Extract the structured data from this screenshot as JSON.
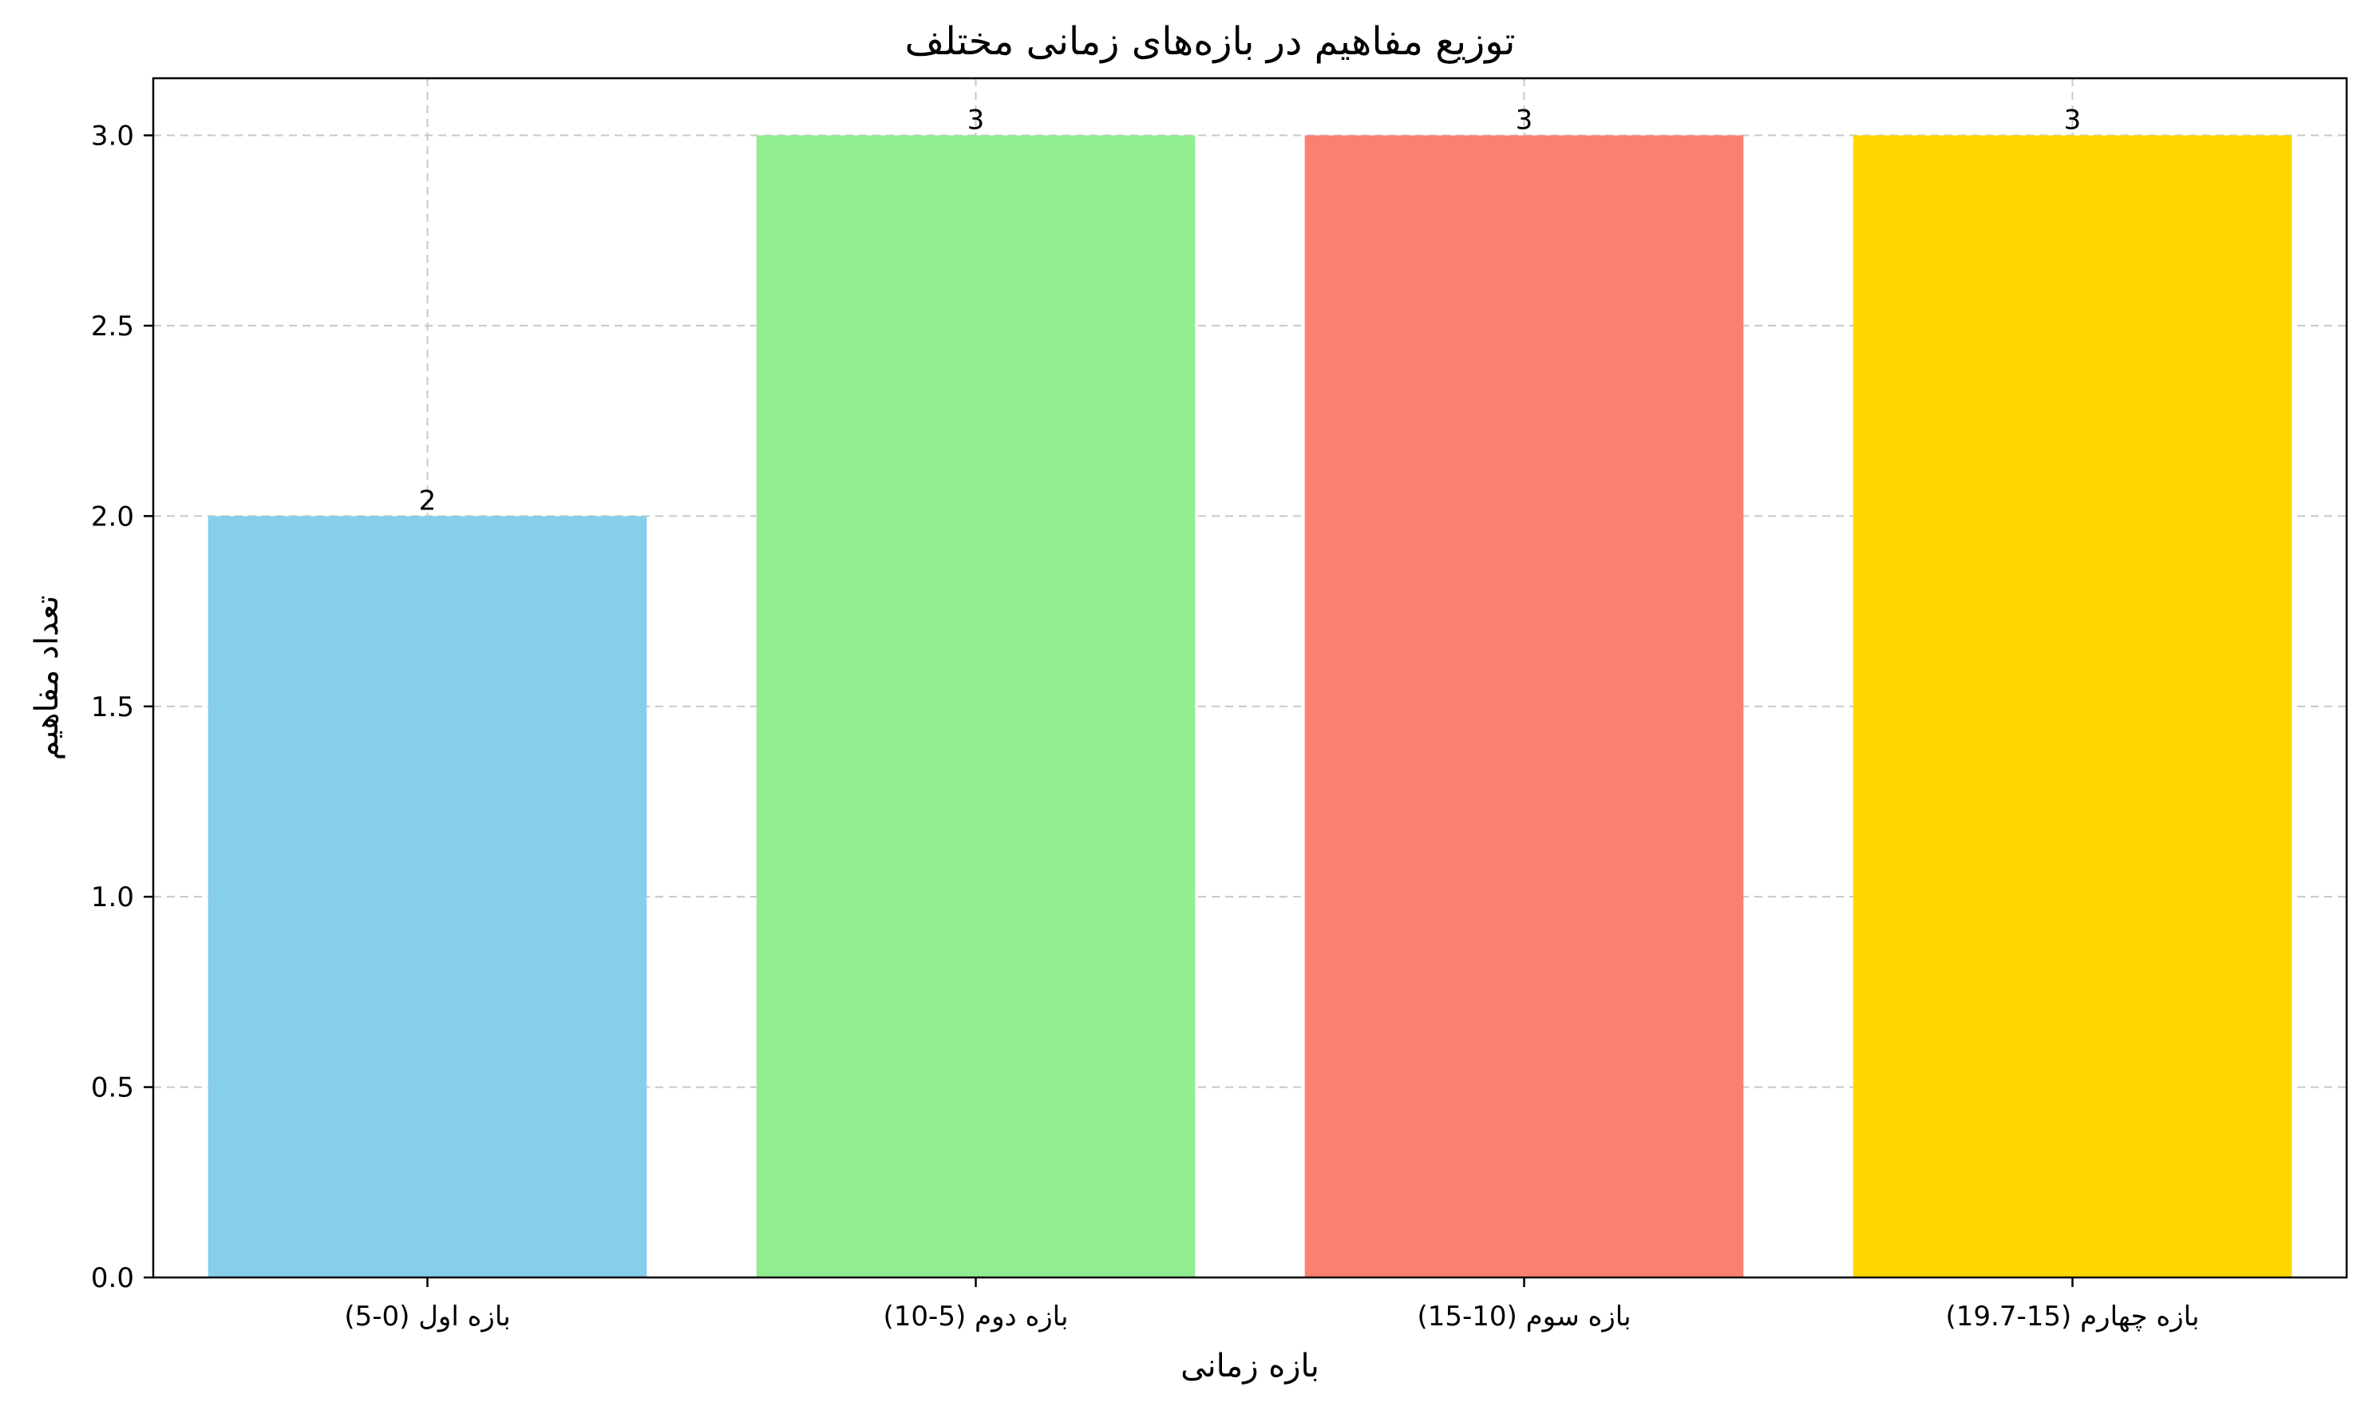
{
  "chart_data": {
    "type": "bar",
    "title": "توزیع مفاهیم در بازه‌های زمانی مختلف",
    "xlabel": "بازه زمانی",
    "ylabel": "تعداد مفاهیم",
    "categories": [
      "بازه اول (0-5)",
      "بازه دوم (5-10)",
      "بازه سوم (10-15)",
      "بازه چهارم (15-19.7)"
    ],
    "values": [
      2,
      3,
      3,
      3
    ],
    "value_labels": [
      "2",
      "3",
      "3",
      "3"
    ],
    "colors": [
      "#87CEEB",
      "#90EE90",
      "#FA8072",
      "#FFD700"
    ],
    "ylim": [
      0,
      3.15
    ],
    "yticks": [
      0.0,
      0.5,
      1.0,
      1.5,
      2.0,
      2.5,
      3.0
    ],
    "ytick_labels": [
      "0.0",
      "0.5",
      "1.0",
      "1.5",
      "2.0",
      "2.5",
      "3.0"
    ],
    "grid": true,
    "grid_style": "dashed",
    "grid_color": "#c8c8c8"
  }
}
